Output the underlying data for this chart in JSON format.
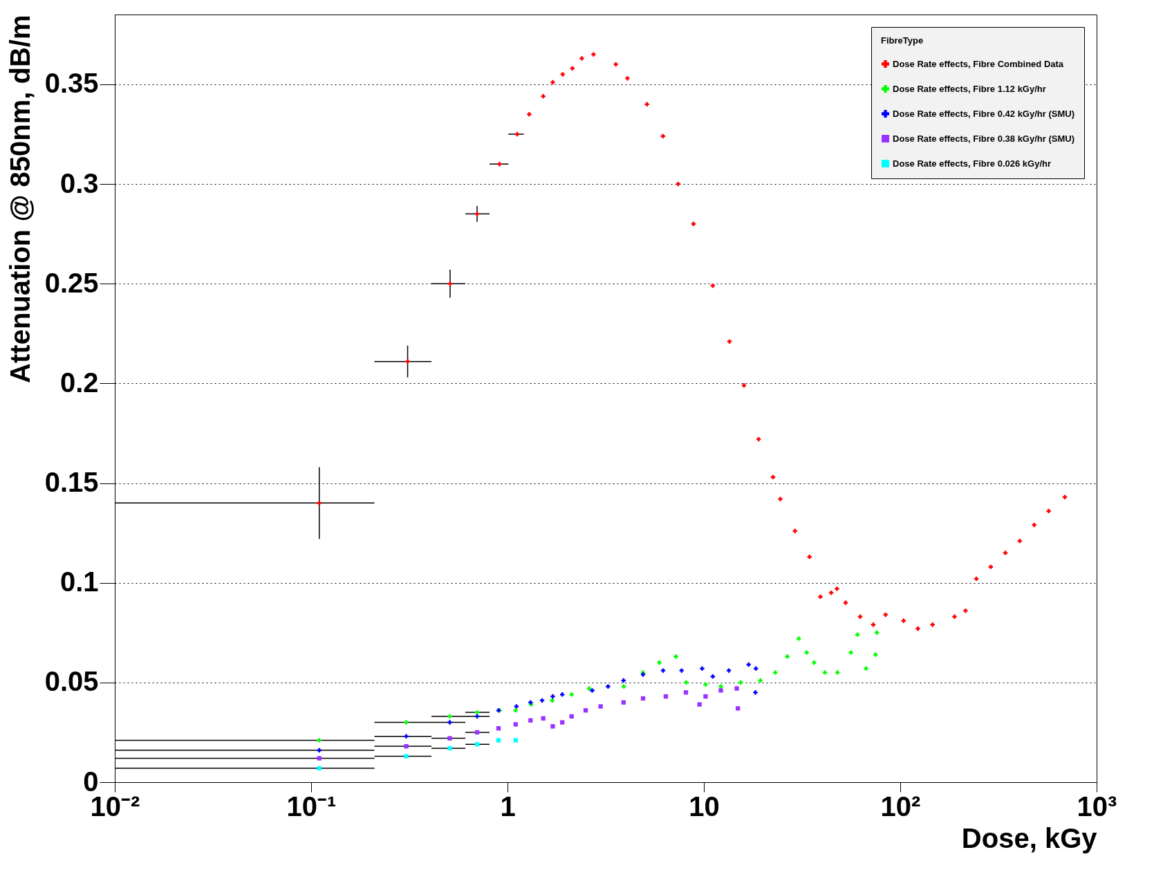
{
  "chart_data": {
    "type": "scatter",
    "xlabel": "Dose, kGy",
    "ylabel": "Attenuation @ 850nm, dB/m",
    "legend_title": "FibreType",
    "legend": "top right",
    "grid": "y",
    "log": "x",
    "xlim": [
      0.01,
      1000
    ],
    "xticks": [
      {
        "value": 0.01,
        "label": "10⁻²"
      },
      {
        "value": 0.1,
        "label": "10⁻¹"
      },
      1,
      10,
      {
        "value": 100,
        "label": "10²"
      },
      {
        "value": 1000,
        "label": "10³"
      }
    ],
    "ylim": [
      0,
      0.385
    ],
    "yticks": [
      0,
      0.05,
      0.1,
      0.15,
      0.2,
      0.25,
      0.3,
      0.35
    ],
    "series": [
      {
        "name": "Dose Rate effects, Fibre Combined Data",
        "color": "#ff0000",
        "marker": "cross",
        "x": [
          0.11,
          0.31,
          0.51,
          0.7,
          0.91,
          1.12,
          1.29,
          1.52,
          1.7,
          1.91,
          2.14,
          2.39,
          2.74,
          3.56,
          4.08,
          5.13,
          6.19,
          7.4,
          8.85,
          11.1,
          13.5,
          16,
          19,
          22.5,
          24.5,
          29.1,
          34.5,
          39.2,
          44.5,
          47.6,
          52.7,
          62.5,
          72.9,
          84.2,
          104,
          123,
          146,
          189,
          215,
          244,
          289,
          343,
          406,
          481,
          570,
          689
        ],
        "values": [
          0.14,
          0.211,
          0.25,
          0.285,
          0.31,
          0.325,
          0.335,
          0.344,
          0.351,
          0.355,
          0.358,
          0.363,
          0.365,
          0.36,
          0.353,
          0.34,
          0.324,
          0.3,
          0.28,
          0.249,
          0.221,
          0.199,
          0.172,
          0.153,
          0.142,
          0.126,
          0.113,
          0.093,
          0.095,
          0.097,
          0.09,
          0.083,
          0.079,
          0.084,
          0.081,
          0.077,
          0.079,
          0.083,
          0.086,
          0.102,
          0.108,
          0.115,
          0.121,
          0.129,
          0.136,
          0.143
        ],
        "errors": [
          0.018,
          0.008,
          0.007,
          0.004,
          null,
          null,
          null,
          null,
          null,
          null,
          null,
          null,
          null,
          null,
          null,
          null,
          null,
          null,
          null,
          null,
          null,
          null,
          null,
          null,
          null,
          null,
          null,
          null,
          null,
          null,
          null,
          null,
          null,
          null,
          null,
          null,
          null,
          null,
          null,
          null,
          null,
          null,
          null,
          null,
          null,
          null
        ],
        "xerrors": [
          [
            0.01,
            0.21
          ],
          [
            0.21,
            0.41
          ],
          [
            0.41,
            0.61
          ],
          [
            0.61,
            0.81
          ],
          [
            0.81,
            1.01
          ],
          [
            1.01,
            1.21
          ],
          null,
          null,
          null,
          null,
          null,
          null,
          null,
          null,
          null,
          null,
          null,
          null,
          null,
          null,
          null,
          null,
          null,
          null,
          null,
          null,
          null,
          null,
          null,
          null,
          null,
          null,
          null,
          null,
          null,
          null,
          null,
          null,
          null,
          null,
          null,
          null,
          null,
          null,
          null,
          null
        ]
      },
      {
        "name": "Dose Rate effects, Fibre 1.12 kGy/hr",
        "color": "#00ff00",
        "marker": "cross",
        "x": [
          0.11,
          0.305,
          0.508,
          0.7,
          0.91,
          1.1,
          1.32,
          1.69,
          2.12,
          2.6,
          3.91,
          4.9,
          5.93,
          7.2,
          8.13,
          10.2,
          12.2,
          15.4,
          19.4,
          23.1,
          26.6,
          30.4,
          33.4,
          36.4,
          41.3,
          47.9,
          56.1,
          60.5,
          67,
          74.8,
          76
        ],
        "values": [
          0.021,
          0.03,
          0.033,
          0.035,
          0.036,
          0.036,
          0.039,
          0.041,
          0.044,
          0.047,
          0.048,
          0.055,
          0.06,
          0.063,
          0.05,
          0.049,
          0.048,
          0.05,
          0.051,
          0.055,
          0.063,
          0.072,
          0.065,
          0.06,
          0.055,
          0.055,
          0.065,
          0.074,
          0.057,
          0.064,
          0.075
        ],
        "xerrors": [
          [
            0.01,
            0.21
          ],
          [
            0.21,
            0.41
          ],
          [
            0.41,
            0.61
          ],
          [
            0.61,
            0.81
          ],
          null,
          null,
          null,
          null,
          null,
          null,
          null,
          null,
          null,
          null,
          null,
          null,
          null,
          null,
          null,
          null,
          null,
          null,
          null,
          null,
          null,
          null,
          null,
          null,
          null,
          null,
          null
        ]
      },
      {
        "name": "Dose Rate effects, Fibre 0.42 kGy/hr (SMU)",
        "color": "#0000ff",
        "marker": "cross",
        "x": [
          0.11,
          0.305,
          0.508,
          0.7,
          0.9,
          1.11,
          1.31,
          1.5,
          1.7,
          1.9,
          2.7,
          3.25,
          3.9,
          4.9,
          6.2,
          7.7,
          9.8,
          11.1,
          13.4,
          16.9,
          18.4,
          18.3
        ],
        "values": [
          0.016,
          0.023,
          0.03,
          0.033,
          0.036,
          0.038,
          0.04,
          0.041,
          0.043,
          0.044,
          0.046,
          0.048,
          0.051,
          0.054,
          0.056,
          0.056,
          0.057,
          0.053,
          0.056,
          0.059,
          0.057,
          0.045
        ],
        "xerrors": [
          [
            0.01,
            0.21
          ],
          [
            0.21,
            0.41
          ],
          [
            0.41,
            0.61
          ],
          [
            0.61,
            0.81
          ],
          null,
          null,
          null,
          null,
          null,
          null,
          null,
          null,
          null,
          null,
          null,
          null,
          null,
          null,
          null,
          null,
          null,
          null
        ]
      },
      {
        "name": "Dose Rate effects, Fibre 0.38 kGy/hr (SMU)",
        "color": "#9933ff",
        "marker": "square",
        "x": [
          0.11,
          0.305,
          0.508,
          0.7,
          0.9,
          1.1,
          1.31,
          1.52,
          1.7,
          1.9,
          2.12,
          2.5,
          2.98,
          3.9,
          4.9,
          6.4,
          8.1,
          9.5,
          10.2,
          12.2,
          14.7,
          14.9
        ],
        "values": [
          0.012,
          0.018,
          0.022,
          0.025,
          0.027,
          0.029,
          0.031,
          0.032,
          0.028,
          0.03,
          0.033,
          0.036,
          0.038,
          0.04,
          0.042,
          0.043,
          0.045,
          0.039,
          0.043,
          0.046,
          0.047,
          0.037
        ],
        "xerrors": [
          [
            0.01,
            0.21
          ],
          [
            0.21,
            0.41
          ],
          [
            0.41,
            0.61
          ],
          [
            0.61,
            0.81
          ],
          null,
          null,
          null,
          null,
          null,
          null,
          null,
          null,
          null,
          null,
          null,
          null,
          null,
          null,
          null,
          null,
          null,
          null
        ]
      },
      {
        "name": "Dose Rate effects, Fibre 0.026 kGy/hr",
        "color": "#00ffff",
        "marker": "square",
        "x": [
          0.11,
          0.305,
          0.508,
          0.7,
          0.9,
          1.1
        ],
        "values": [
          0.007,
          0.013,
          0.017,
          0.019,
          0.021,
          0.021
        ],
        "xerrors": [
          [
            0.01,
            0.21
          ],
          [
            0.21,
            0.41
          ],
          [
            0.41,
            0.61
          ],
          [
            0.61,
            0.81
          ],
          null,
          null
        ]
      }
    ]
  }
}
